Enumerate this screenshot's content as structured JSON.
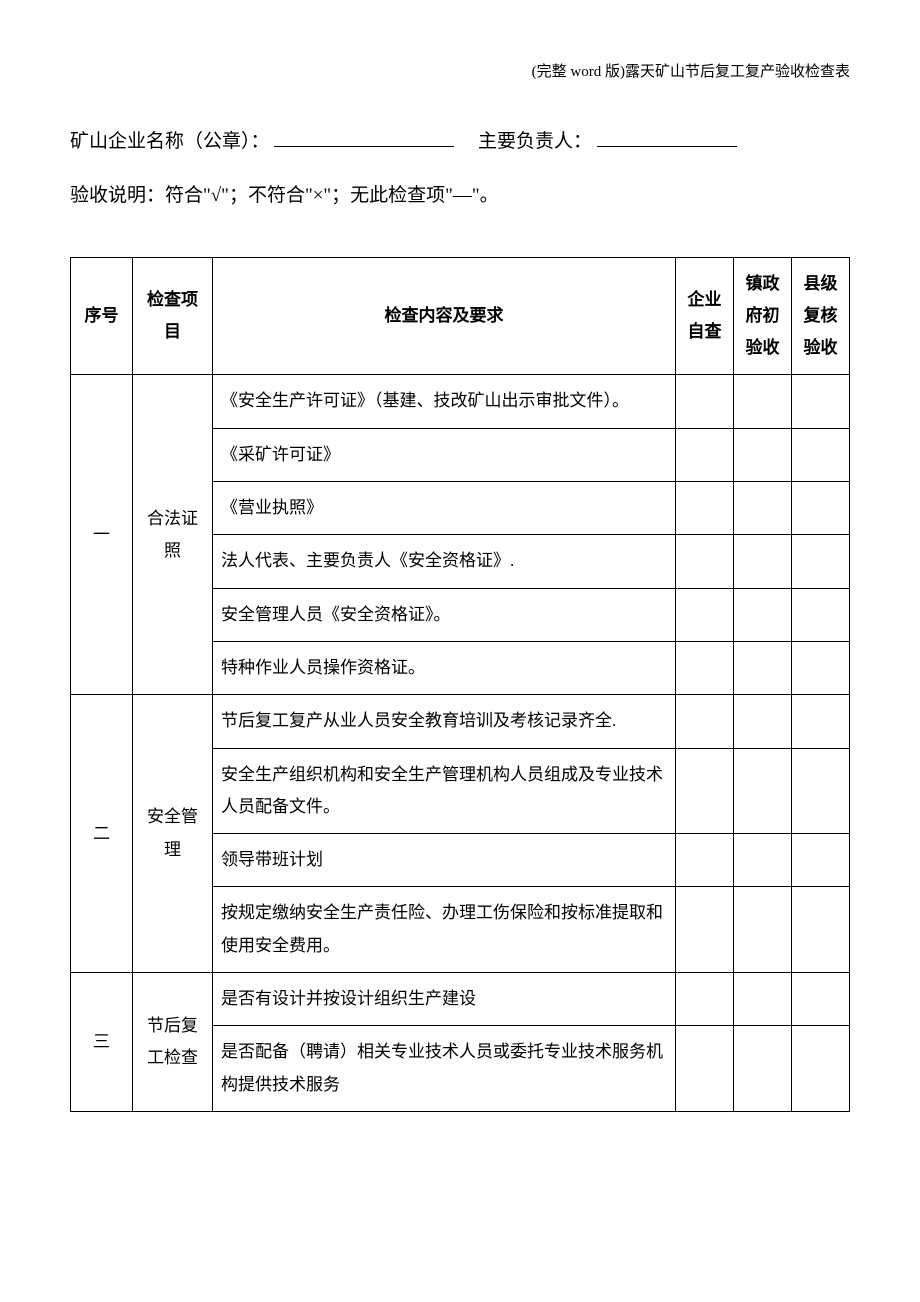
{
  "header_note": "(完整 word 版)露天矿山节后复工复产验收检查表",
  "form": {
    "company_label": "矿山企业名称（公章）：",
    "responsible_label": "主要负责人：",
    "instructions": "验收说明：符合\"√\"；不符合\"×\"；无此检查项\"—\"。"
  },
  "columns": {
    "seq": "序号",
    "category": "检查项目",
    "content": "检查内容及要求",
    "c1": "企业自查",
    "c2": "镇政府初验收",
    "c3": "县级复核验收"
  },
  "sections": [
    {
      "seq": "一",
      "category": "合法证照",
      "rows": [
        "《安全生产许可证》（基建、技改矿山出示审批文件）。",
        "《采矿许可证》",
        "《营业执照》",
        "法人代表、主要负责人《安全资格证》.",
        "安全管理人员《安全资格证》。",
        "特种作业人员操作资格证。"
      ]
    },
    {
      "seq": "二",
      "category": "安全管理",
      "rows": [
        "节后复工复产从业人员安全教育培训及考核记录齐全.",
        "安全生产组织机构和安全生产管理机构人员组成及专业技术人员配备文件。",
        "领导带班计划",
        "按规定缴纳安全生产责任险、办理工伤保险和按标准提取和使用安全费用。"
      ]
    },
    {
      "seq": "三",
      "category": "节后复工检查",
      "rows": [
        "是否有设计并按设计组织生产建设",
        "是否配备（聘请）相关专业技术人员或委托专业技术服务机构提供技术服务"
      ]
    }
  ]
}
